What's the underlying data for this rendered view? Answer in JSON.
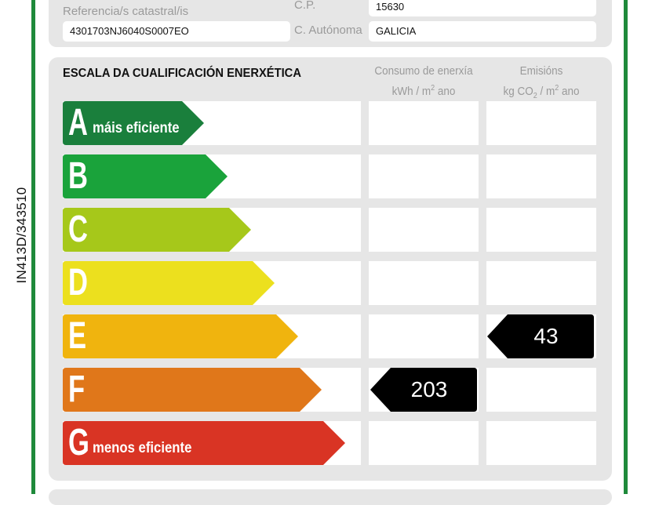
{
  "side_code": "IN413D/343510",
  "info": {
    "cp_label": "C.P.",
    "cp_value": "15630",
    "ref_label": "Referencia/s catastral/is",
    "ref_value": "4301703NJ6040S0007EO",
    "ccaa_label": "C. Autónoma",
    "ccaa_value": "GALICIA"
  },
  "scale": {
    "title": "ESCALA DA CUALIFICACIÓN ENERXÉTICA",
    "col_consumo": {
      "line1": "Consumo de enerxía",
      "line2_pre": "kWh / m",
      "line2_sup": "2",
      "line2_post": " ano"
    },
    "col_emisions": {
      "line1": "Emisións",
      "line2_pre": "kg CO",
      "line2_sub": "2",
      "line2_mid": " / m",
      "line2_sup": "2",
      "line2_post": " ano"
    },
    "classes": [
      {
        "letter": "A",
        "text": "máis eficiente",
        "color": "#1a7f3c"
      },
      {
        "letter": "B",
        "text": "",
        "color": "#1aa33b"
      },
      {
        "letter": "C",
        "text": "",
        "color": "#a6c81a"
      },
      {
        "letter": "D",
        "text": "",
        "color": "#ece01e"
      },
      {
        "letter": "E",
        "text": "",
        "color": "#f0b40e"
      },
      {
        "letter": "F",
        "text": "",
        "color": "#e0771a"
      },
      {
        "letter": "G",
        "text": "menos eficiente",
        "color": "#d93424"
      }
    ],
    "consumo": {
      "value": "203",
      "class": "F"
    },
    "emisions": {
      "value": "43",
      "class": "E"
    }
  }
}
